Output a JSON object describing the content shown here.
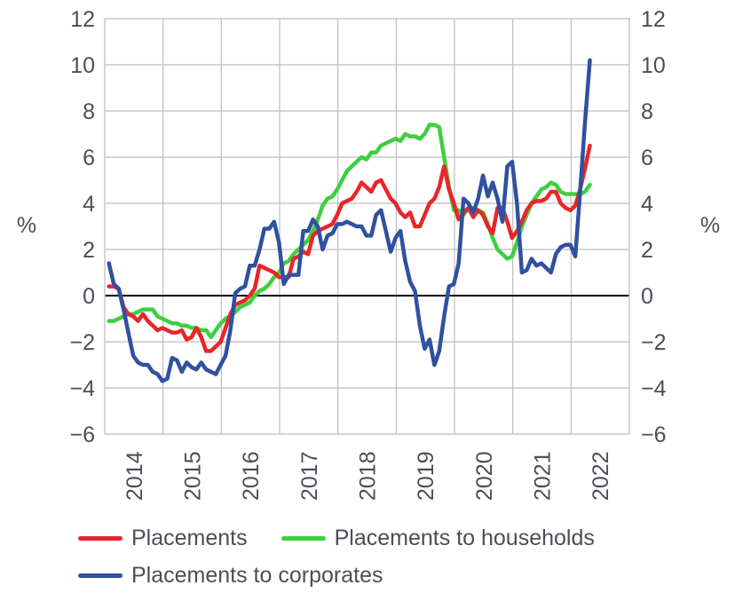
{
  "chart_data": {
    "type": "line",
    "title": "",
    "xlabel": "",
    "ylabel": "%",
    "ylabel_right": "%",
    "ylim": [
      -6,
      12
    ],
    "yticks": [
      12,
      10,
      8,
      6,
      4,
      2,
      0,
      -2,
      -4,
      -6
    ],
    "ytick_labels": [
      "12",
      "10",
      "8",
      "6",
      "4",
      "2",
      "0",
      "−2",
      "−4",
      "−6"
    ],
    "x_start": "2014-01",
    "x_frequency": "monthly",
    "xtick_labels": [
      "2014",
      "2015",
      "2016",
      "2017",
      "2018",
      "2019",
      "2020",
      "2021",
      "2022"
    ],
    "grid": true,
    "legend_position": "bottom",
    "series": [
      {
        "name": "Placements",
        "color": "#e8262a",
        "values": [
          0.4,
          0.4,
          0.3,
          -0.5,
          -0.8,
          -0.9,
          -1.1,
          -0.8,
          -1.1,
          -1.3,
          -1.5,
          -1.4,
          -1.5,
          -1.6,
          -1.6,
          -1.5,
          -1.9,
          -1.8,
          -1.4,
          -1.8,
          -2.4,
          -2.4,
          -2.2,
          -2.0,
          -1.4,
          -0.8,
          -0.4,
          -0.3,
          -0.2,
          0.0,
          0.3,
          1.3,
          1.2,
          1.1,
          1.0,
          0.8,
          0.8,
          0.8,
          1.6,
          1.7,
          1.9,
          1.8,
          2.6,
          2.8,
          2.9,
          3.0,
          3.1,
          3.5,
          4.0,
          4.1,
          4.2,
          4.5,
          4.9,
          4.7,
          4.5,
          4.9,
          5.0,
          4.6,
          4.2,
          4.0,
          3.6,
          3.4,
          3.6,
          3.0,
          3.0,
          3.5,
          4.0,
          4.2,
          4.7,
          5.6,
          4.6,
          4.0,
          3.3,
          3.6,
          3.8,
          3.4,
          3.7,
          3.5,
          3.0,
          2.7,
          3.8,
          3.8,
          3.2,
          2.5,
          2.8,
          3.2,
          3.7,
          4.0,
          4.1,
          4.1,
          4.2,
          4.5,
          4.5,
          4.0,
          3.8,
          3.7,
          3.9,
          4.6,
          5.5,
          6.5
        ]
      },
      {
        "name": "Placements to households",
        "color": "#3ecf3f",
        "values": [
          -1.1,
          -1.1,
          -1.0,
          -0.9,
          -0.8,
          -0.8,
          -0.7,
          -0.6,
          -0.6,
          -0.6,
          -0.9,
          -1.0,
          -1.1,
          -1.2,
          -1.2,
          -1.3,
          -1.3,
          -1.4,
          -1.4,
          -1.5,
          -1.5,
          -1.8,
          -1.5,
          -1.2,
          -1.0,
          -0.9,
          -0.7,
          -0.5,
          -0.4,
          -0.3,
          0.0,
          0.2,
          0.3,
          0.5,
          0.8,
          1.0,
          1.4,
          1.5,
          1.8,
          2.0,
          2.2,
          2.4,
          2.8,
          3.3,
          3.9,
          4.2,
          4.3,
          4.6,
          5.0,
          5.4,
          5.6,
          5.8,
          6.0,
          5.9,
          6.2,
          6.2,
          6.5,
          6.6,
          6.7,
          6.8,
          6.7,
          7.0,
          6.9,
          6.9,
          6.8,
          7.0,
          7.4,
          7.4,
          7.3,
          6.0,
          4.7,
          3.7,
          3.7,
          3.5,
          3.8,
          3.8,
          3.7,
          3.6,
          3.1,
          2.5,
          2.0,
          1.8,
          1.6,
          1.7,
          2.3,
          3.0,
          3.5,
          4.0,
          4.3,
          4.6,
          4.7,
          4.9,
          4.8,
          4.5,
          4.4,
          4.4,
          4.4,
          4.4,
          4.5,
          4.8
        ]
      },
      {
        "name": "Placements to corporates",
        "color": "#3050a0",
        "values": [
          1.4,
          0.5,
          0.3,
          -0.6,
          -1.6,
          -2.6,
          -2.9,
          -3.0,
          -3.0,
          -3.3,
          -3.4,
          -3.7,
          -3.6,
          -2.7,
          -2.8,
          -3.3,
          -2.9,
          -3.1,
          -3.2,
          -2.9,
          -3.2,
          -3.3,
          -3.4,
          -3.0,
          -2.6,
          -1.5,
          0.1,
          0.3,
          0.4,
          1.3,
          1.3,
          2.0,
          2.9,
          2.9,
          3.2,
          2.3,
          0.5,
          0.9,
          0.9,
          0.9,
          2.8,
          2.8,
          3.3,
          3.0,
          2.0,
          2.6,
          2.7,
          3.1,
          3.1,
          3.2,
          3.1,
          3.0,
          3.0,
          2.6,
          2.6,
          3.5,
          3.7,
          2.8,
          1.9,
          2.5,
          2.8,
          1.5,
          0.6,
          0.2,
          -1.3,
          -2.3,
          -1.9,
          -3.0,
          -2.4,
          -0.9,
          0.4,
          0.5,
          1.4,
          4.2,
          4.0,
          3.6,
          4.2,
          5.2,
          4.3,
          4.9,
          4.2,
          3.2,
          5.6,
          5.8,
          4.0,
          1.0,
          1.1,
          1.6,
          1.3,
          1.4,
          1.2,
          1.0,
          1.8,
          2.1,
          2.2,
          2.2,
          1.7,
          4.5,
          7.5,
          10.2
        ]
      }
    ]
  },
  "colors": {
    "grid": "#bdbdbd",
    "zero_line": "#000000",
    "axis_text": "#4a4f55"
  }
}
